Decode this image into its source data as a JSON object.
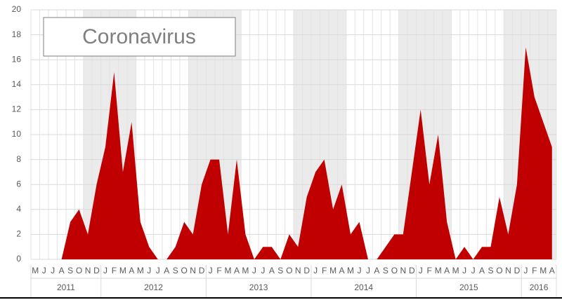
{
  "chart_data": {
    "type": "area",
    "title": "Coronavirus",
    "categories": [
      "M",
      "J",
      "J",
      "A",
      "S",
      "O",
      "N",
      "D",
      "J",
      "F",
      "M",
      "A",
      "M",
      "J",
      "J",
      "A",
      "S",
      "O",
      "N",
      "D",
      "J",
      "F",
      "M",
      "A",
      "M",
      "J",
      "J",
      "A",
      "S",
      "O",
      "N",
      "D",
      "J",
      "F",
      "M",
      "A",
      "M",
      "J",
      "J",
      "A",
      "S",
      "O",
      "N",
      "D",
      "J",
      "F",
      "M",
      "A",
      "M",
      "J",
      "J",
      "A",
      "S",
      "O",
      "N",
      "D",
      "J",
      "F",
      "M",
      "A"
    ],
    "years": [
      "2011",
      "2012",
      "2013",
      "2014",
      "2015",
      "2016"
    ],
    "values": [
      0,
      0,
      0,
      0,
      3,
      4,
      2,
      6,
      9,
      15,
      7,
      11,
      3,
      1,
      0,
      0,
      1,
      3,
      2,
      6,
      8,
      8,
      2,
      8,
      2,
      0,
      1,
      1,
      0,
      2,
      1,
      5,
      7,
      8,
      4,
      6,
      2,
      3,
      0,
      0,
      1,
      2,
      2,
      7,
      12,
      6,
      10,
      3,
      0,
      1,
      0,
      1,
      1,
      5,
      2,
      6,
      17,
      13,
      11,
      9
    ],
    "color": "#c00000",
    "ylim": [
      0,
      20
    ],
    "yticks": [
      0,
      2,
      4,
      6,
      8,
      10,
      12,
      14,
      16,
      18,
      20
    ],
    "grid": true
  }
}
